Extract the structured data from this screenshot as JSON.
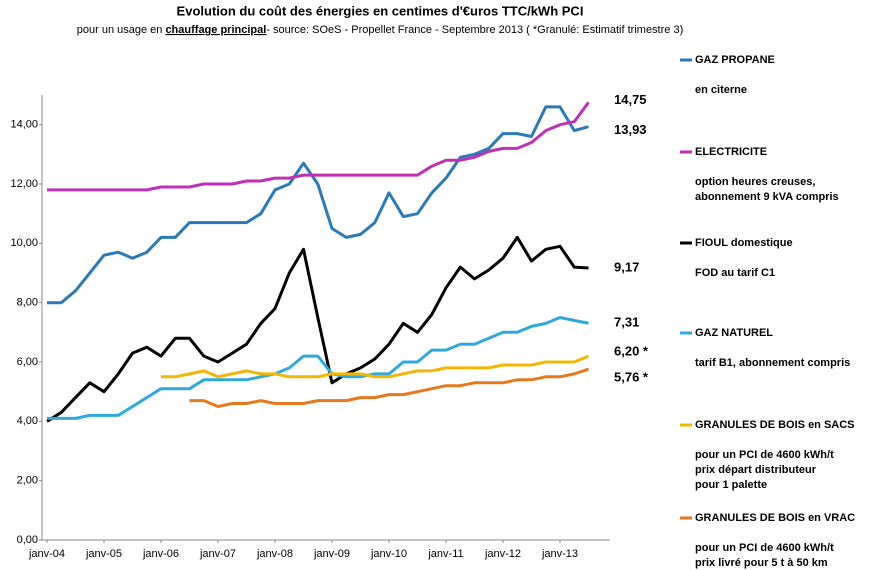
{
  "chart_data": {
    "type": "line",
    "title": "Evolution du coût des énergies en centimes d'€uros TTC/kWh PCI",
    "subtitle": [
      "pour un usage en ",
      "chauffage principal",
      "- source: SOeS - Propellet France - Septembre 2013 ( *Granulé: Estimatif trimestre 3)"
    ],
    "categories": [
      "janv-04",
      null,
      null,
      null,
      "janv-05",
      null,
      null,
      null,
      "janv-06",
      null,
      null,
      null,
      "janv-07",
      null,
      null,
      null,
      "janv-08",
      null,
      null,
      null,
      "janv-09",
      null,
      null,
      null,
      "janv-10",
      null,
      null,
      null,
      "janv-11",
      null,
      null,
      null,
      "janv-12",
      null,
      null,
      null,
      "janv-13",
      null,
      null
    ],
    "ylim": [
      0,
      15
    ],
    "yticks": [
      {
        "value": 0,
        "label": "0,00"
      },
      {
        "value": 2,
        "label": "2,00"
      },
      {
        "value": 4,
        "label": "4,00"
      },
      {
        "value": 6,
        "label": "6,00"
      },
      {
        "value": 8,
        "label": "8,00"
      },
      {
        "value": 10,
        "label": "10,00"
      },
      {
        "value": 12,
        "label": "12,00"
      },
      {
        "value": 14,
        "label": "14,00"
      }
    ],
    "grid": false,
    "series": [
      {
        "name": "GAZ PROPANE",
        "description": [
          "en citerne"
        ],
        "color": "#2a7ab8",
        "values": [
          8.0,
          8.0,
          8.4,
          9.0,
          9.6,
          9.7,
          9.5,
          9.7,
          10.2,
          10.2,
          10.7,
          10.7,
          10.7,
          10.7,
          10.7,
          11.0,
          11.8,
          12.0,
          12.7,
          12.0,
          10.5,
          10.2,
          10.3,
          10.7,
          11.7,
          10.9,
          11.0,
          11.7,
          12.2,
          12.9,
          13.0,
          13.2,
          13.7,
          13.7,
          13.6,
          14.6,
          14.6,
          13.8,
          13.93
        ],
        "value_labels": [
          null,
          null,
          null,
          null,
          null,
          null,
          null,
          null,
          null,
          null,
          null,
          null,
          null,
          null,
          null,
          null,
          null,
          null,
          null,
          null,
          null,
          null,
          null,
          null,
          null,
          null,
          null,
          null,
          null,
          null,
          null,
          null,
          null,
          null,
          null,
          null,
          null,
          null,
          "13,93"
        ]
      },
      {
        "name": "ELECTRICITE",
        "description": [
          "option heures creuses,",
          "abonnement 9 kVA compris"
        ],
        "color": "#c12fb4",
        "values": [
          11.8,
          11.8,
          11.8,
          11.8,
          11.8,
          11.8,
          11.8,
          11.8,
          11.9,
          11.9,
          11.9,
          12.0,
          12.0,
          12.0,
          12.1,
          12.1,
          12.2,
          12.2,
          12.3,
          12.3,
          12.3,
          12.3,
          12.3,
          12.3,
          12.3,
          12.3,
          12.3,
          12.6,
          12.8,
          12.8,
          12.9,
          13.1,
          13.2,
          13.2,
          13.4,
          13.8,
          14.0,
          14.1,
          14.75
        ],
        "value_labels": [
          null,
          null,
          null,
          null,
          null,
          null,
          null,
          null,
          null,
          null,
          null,
          null,
          null,
          null,
          null,
          null,
          null,
          null,
          null,
          null,
          null,
          null,
          null,
          null,
          null,
          null,
          null,
          null,
          null,
          null,
          null,
          null,
          null,
          null,
          null,
          null,
          null,
          null,
          "14,75"
        ]
      },
      {
        "name": "FIOUL domestique",
        "description": [
          "FOD au tarif C1"
        ],
        "color": "#000000",
        "values": [
          4.0,
          4.3,
          4.8,
          5.3,
          5.0,
          5.6,
          6.3,
          6.5,
          6.2,
          6.8,
          6.8,
          6.2,
          6.0,
          6.3,
          6.6,
          7.3,
          7.8,
          9.0,
          9.8,
          7.5,
          5.3,
          5.6,
          5.8,
          6.1,
          6.6,
          7.3,
          7.0,
          7.6,
          8.5,
          9.2,
          8.8,
          9.1,
          9.5,
          10.2,
          9.4,
          9.8,
          9.9,
          9.2,
          9.17
        ],
        "value_labels": [
          null,
          null,
          null,
          null,
          null,
          null,
          null,
          null,
          null,
          null,
          null,
          null,
          null,
          null,
          null,
          null,
          null,
          null,
          null,
          null,
          null,
          null,
          null,
          null,
          null,
          null,
          null,
          null,
          null,
          null,
          null,
          null,
          null,
          null,
          null,
          null,
          null,
          null,
          "9,17"
        ]
      },
      {
        "name": "GAZ NATUREL",
        "description": [
          "tarif B1, abonnement compris"
        ],
        "color": "#2fa9db",
        "values": [
          4.1,
          4.1,
          4.1,
          4.2,
          4.2,
          4.2,
          4.5,
          4.8,
          5.1,
          5.1,
          5.1,
          5.4,
          5.4,
          5.4,
          5.4,
          5.5,
          5.6,
          5.8,
          6.2,
          6.2,
          5.6,
          5.5,
          5.5,
          5.6,
          5.6,
          6.0,
          6.0,
          6.4,
          6.4,
          6.6,
          6.6,
          6.8,
          7.0,
          7.0,
          7.2,
          7.3,
          7.5,
          7.4,
          7.31
        ],
        "value_labels": [
          null,
          null,
          null,
          null,
          null,
          null,
          null,
          null,
          null,
          null,
          null,
          null,
          null,
          null,
          null,
          null,
          null,
          null,
          null,
          null,
          null,
          null,
          null,
          null,
          null,
          null,
          null,
          null,
          null,
          null,
          null,
          null,
          null,
          null,
          null,
          null,
          null,
          null,
          "7,31"
        ]
      },
      {
        "name": "GRANULES DE BOIS en SACS",
        "description": [
          "pour un PCI de 4600 kWh/t",
          "prix départ distributeur",
          "pour 1 palette"
        ],
        "color": "#f2b705",
        "values": [
          null,
          null,
          null,
          null,
          null,
          null,
          null,
          null,
          5.5,
          5.5,
          5.6,
          5.7,
          5.5,
          5.6,
          5.7,
          5.6,
          5.6,
          5.5,
          5.5,
          5.5,
          5.6,
          5.6,
          5.6,
          5.5,
          5.5,
          5.6,
          5.7,
          5.7,
          5.8,
          5.8,
          5.8,
          5.8,
          5.9,
          5.9,
          5.9,
          6.0,
          6.0,
          6.0,
          6.2
        ],
        "value_labels": [
          null,
          null,
          null,
          null,
          null,
          null,
          null,
          null,
          null,
          null,
          null,
          null,
          null,
          null,
          null,
          null,
          null,
          null,
          null,
          null,
          null,
          null,
          null,
          null,
          null,
          null,
          null,
          null,
          null,
          null,
          null,
          null,
          null,
          null,
          null,
          null,
          null,
          null,
          "6,20 *"
        ]
      },
      {
        "name": "GRANULES DE BOIS en VRAC",
        "description": [
          "pour un PCI de 4600 kWh/t",
          "prix livré pour 5 t à 50 km"
        ],
        "color": "#e8781e",
        "values": [
          null,
          null,
          null,
          null,
          null,
          null,
          null,
          null,
          null,
          null,
          4.7,
          4.7,
          4.5,
          4.6,
          4.6,
          4.7,
          4.6,
          4.6,
          4.6,
          4.7,
          4.7,
          4.7,
          4.8,
          4.8,
          4.9,
          4.9,
          5.0,
          5.1,
          5.2,
          5.2,
          5.3,
          5.3,
          5.3,
          5.4,
          5.4,
          5.5,
          5.5,
          5.6,
          5.76
        ],
        "value_labels": [
          null,
          null,
          null,
          null,
          null,
          null,
          null,
          null,
          null,
          null,
          null,
          null,
          null,
          null,
          null,
          null,
          null,
          null,
          null,
          null,
          null,
          null,
          null,
          null,
          null,
          null,
          null,
          null,
          null,
          null,
          null,
          null,
          null,
          null,
          null,
          null,
          null,
          null,
          "5,76 *"
        ]
      }
    ]
  }
}
